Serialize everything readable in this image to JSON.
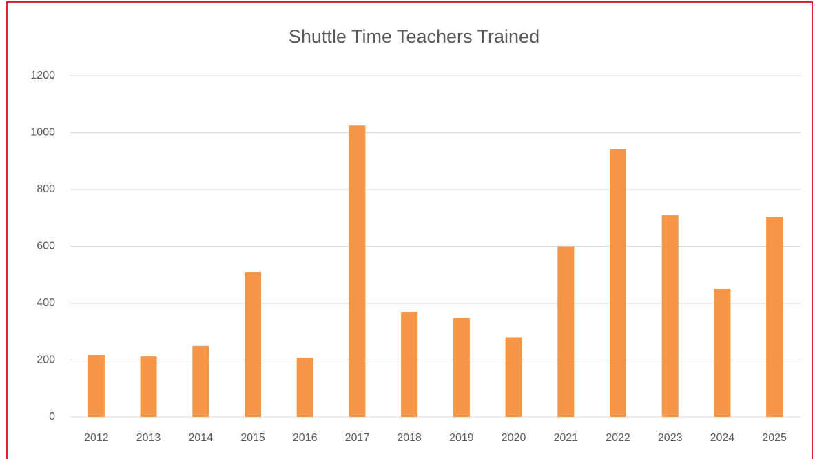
{
  "chart_data": {
    "type": "bar",
    "title": "Shuttle Time Teachers Trained",
    "categories": [
      "2012",
      "2013",
      "2014",
      "2015",
      "2016",
      "2017",
      "2018",
      "2019",
      "2020",
      "2021",
      "2022",
      "2023",
      "2024",
      "2025"
    ],
    "values": [
      218,
      213,
      250,
      510,
      207,
      1025,
      370,
      348,
      280,
      600,
      943,
      710,
      450,
      703
    ],
    "color": "#f79646",
    "ylim": [
      0,
      1200
    ],
    "yticks": [
      0,
      200,
      400,
      600,
      800,
      1000,
      1200
    ],
    "grid": true
  }
}
